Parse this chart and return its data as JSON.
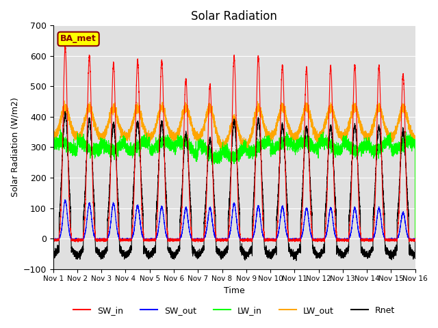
{
  "title": "Solar Radiation",
  "xlabel": "Time",
  "ylabel": "Solar Radiation (W/m2)",
  "ylim": [
    -100,
    700
  ],
  "xlim": [
    0,
    15
  ],
  "xtick_labels": [
    "Nov 1",
    "Nov 2",
    "Nov 3",
    "Nov 4",
    "Nov 5",
    "Nov 6",
    "Nov 7",
    "Nov 8",
    "Nov 9",
    "Nov 10",
    "Nov 11",
    "Nov 12",
    "Nov 13",
    "Nov 14",
    "Nov 15",
    "Nov 16"
  ],
  "series_colors": {
    "SW_in": "#FF0000",
    "SW_out": "#0000FF",
    "LW_in": "#00FF00",
    "LW_out": "#FFA500",
    "Rnet": "#000000"
  },
  "annotation": "BA_met",
  "annotation_bg": "#FFFF00",
  "annotation_border": "#8B0000",
  "bg_color": "#E0E0E0",
  "figsize": [
    6.4,
    4.8
  ],
  "dpi": 100,
  "sw_in_peaks": [
    630,
    600,
    575,
    585,
    585,
    525,
    505,
    595,
    600,
    570,
    560,
    565,
    570,
    565,
    540
  ],
  "sw_out_peaks": [
    125,
    115,
    115,
    108,
    105,
    100,
    100,
    115,
    105,
    105,
    100,
    100,
    100,
    100,
    85
  ],
  "lw_in_base": 305,
  "lw_out_night": 330,
  "lw_out_day_bump": 100,
  "rnet_night": -35,
  "rnet_day_scale": 0.65
}
